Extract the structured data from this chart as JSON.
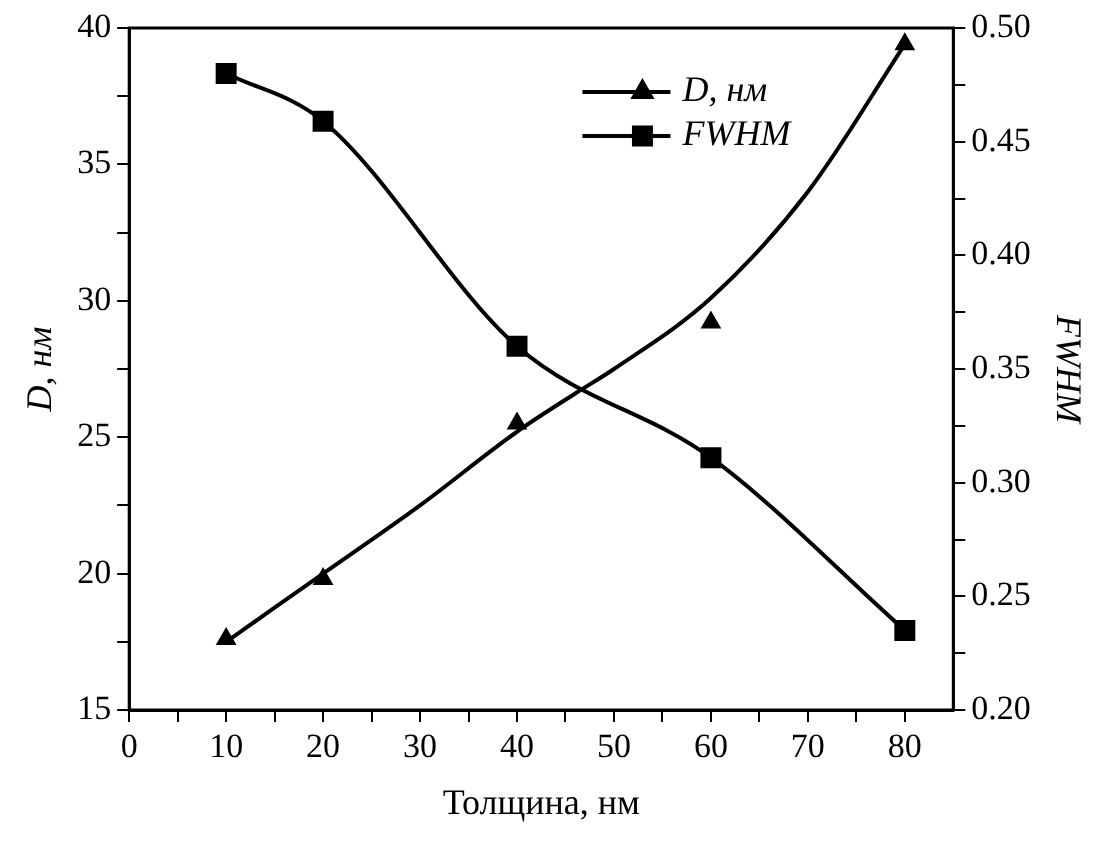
{
  "chart_data": {
    "type": "scatter",
    "xlabel": "Толщина, нм",
    "ylabel": "D, нм",
    "y2label": "FWHM",
    "legend": "top right",
    "xlim": [
      0,
      85
    ],
    "xticks": [
      0,
      {
        "value": 5,
        "label": null
      },
      10,
      {
        "value": 15,
        "label": null
      },
      20,
      {
        "value": 25,
        "label": null
      },
      30,
      {
        "value": 35,
        "label": null
      },
      40,
      {
        "value": 45,
        "label": null
      },
      50,
      {
        "value": 55,
        "label": null
      },
      60,
      {
        "value": 65,
        "label": null
      },
      70,
      {
        "value": 75,
        "label": null
      },
      80
    ],
    "ylim": [
      15,
      40
    ],
    "yticks": [
      15,
      {
        "value": 17.5,
        "label": null
      },
      20,
      {
        "value": 22.5,
        "label": null
      },
      25,
      {
        "value": 27.5,
        "label": null
      },
      30,
      {
        "value": 32.5,
        "label": null
      },
      35,
      {
        "value": 37.5,
        "label": null
      },
      40
    ],
    "y2lim": [
      0.2,
      0.5
    ],
    "y2ticks": [
      {
        "value": 0.2,
        "label": "0.20"
      },
      {
        "value": 0.225,
        "label": null
      },
      0.25,
      {
        "value": 0.275,
        "label": null
      },
      {
        "value": 0.3,
        "label": "0.30"
      },
      {
        "value": 0.325,
        "label": null
      },
      0.35,
      {
        "value": 0.375,
        "label": null
      },
      {
        "value": 0.4,
        "label": "0.40"
      },
      {
        "value": 0.425,
        "label": null
      },
      0.45,
      {
        "value": 0.475,
        "label": null
      },
      {
        "value": 0.5,
        "label": "0.50"
      }
    ],
    "series": [
      {
        "name": "D, нм",
        "marker": "triangle",
        "color": "#000000",
        "x": [
          10,
          20,
          40,
          60,
          80
        ],
        "values": [
          17.6,
          19.8,
          25.5,
          29.2,
          39.4
        ]
      },
      {
        "type": "line",
        "marker": "none",
        "color": "#000000",
        "x": [
          10,
          20,
          30,
          40,
          46,
          50,
          60,
          70,
          80
        ],
        "values": [
          17.5,
          20.0,
          22.5,
          25.2,
          26.6,
          27.5,
          30.1,
          34.0,
          39.4
        ]
      },
      {
        "name": "FWHM",
        "type": "line",
        "axis": "y2",
        "marker": "square",
        "color": "#000000",
        "x": [
          10,
          20,
          40,
          60,
          80
        ],
        "values": [
          0.48,
          0.459,
          0.36,
          0.311,
          0.235
        ]
      }
    ]
  }
}
